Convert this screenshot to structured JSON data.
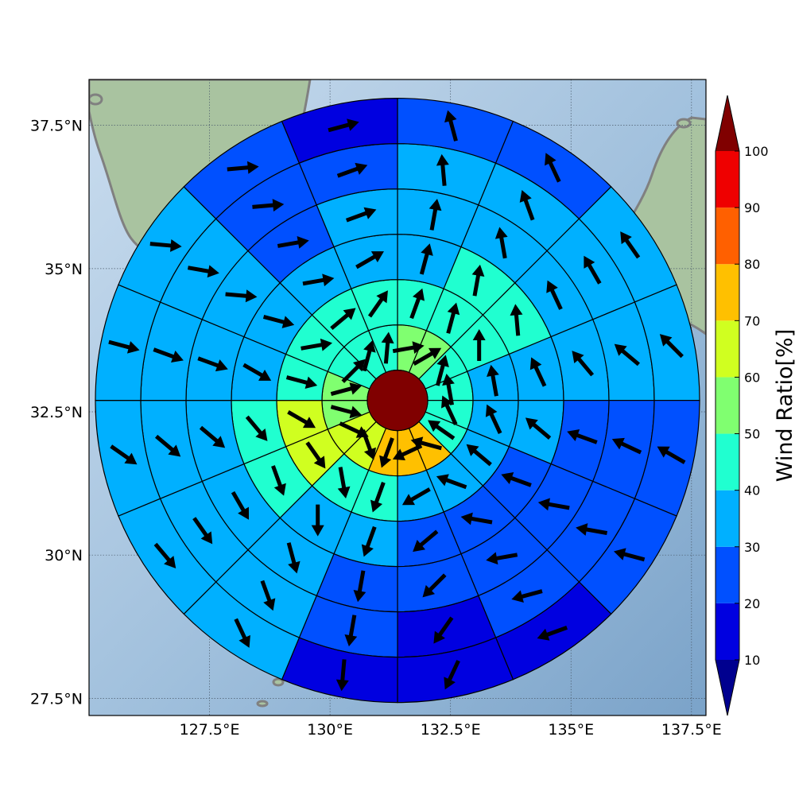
{
  "map": {
    "x_ticks": [
      "127.5°E",
      "130°E",
      "132.5°E",
      "135°E",
      "137.5°E"
    ],
    "y_ticks": [
      "37.5°N",
      "35°N",
      "32.5°N",
      "30°N",
      "27.5°N"
    ],
    "x_tick_values": [
      127.5,
      130,
      132.5,
      135,
      137.5
    ],
    "y_tick_values": [
      37.5,
      35,
      32.5,
      30,
      27.5
    ],
    "lon_range": [
      125.0,
      137.8
    ],
    "lat_range": [
      27.2,
      38.3
    ],
    "grid": true,
    "background": "shaded relief with gray coastlines",
    "coastline_color": "#808080"
  },
  "chart_data": {
    "type": "polar-sector-heatmap",
    "center": {
      "lon": 131.4,
      "lat": 32.7
    },
    "center_value": 100,
    "ring_count": 6,
    "sector_count": 16,
    "ring_values": [
      [
        50,
        50,
        40,
        40,
        40,
        40,
        70,
        70,
        70,
        60,
        60,
        50,
        50,
        40,
        40,
        40
      ],
      [
        40,
        40,
        40,
        30,
        30,
        30,
        30,
        30,
        40,
        40,
        60,
        60,
        40,
        40,
        40,
        40
      ],
      [
        30,
        40,
        40,
        30,
        30,
        20,
        20,
        20,
        30,
        30,
        40,
        40,
        30,
        30,
        30,
        30
      ],
      [
        30,
        30,
        30,
        30,
        20,
        20,
        20,
        20,
        20,
        30,
        30,
        30,
        30,
        30,
        20,
        30
      ],
      [
        30,
        30,
        30,
        30,
        20,
        20,
        20,
        10,
        20,
        30,
        30,
        30,
        30,
        30,
        20,
        20
      ],
      [
        20,
        20,
        30,
        30,
        20,
        20,
        10,
        10,
        10,
        30,
        30,
        30,
        30,
        30,
        20,
        10
      ]
    ],
    "sector_start_deg": 90,
    "sector_direction": "clockwise",
    "arrow_directions_deg": [
      [
        10,
        30,
        75,
        100,
        115,
        145,
        165,
        205,
        250,
        290,
        335,
        345,
        15,
        45,
        75,
        85
      ],
      [
        70,
        75,
        90,
        100,
        115,
        140,
        160,
        210,
        250,
        280,
        305,
        330,
        345,
        10,
        40,
        55
      ],
      [
        75,
        80,
        95,
        115,
        140,
        160,
        170,
        220,
        250,
        270,
        290,
        310,
        330,
        345,
        10,
        30
      ],
      [
        80,
        100,
        115,
        130,
        160,
        170,
        190,
        225,
        260,
        285,
        300,
        320,
        340,
        355,
        10,
        20
      ],
      [
        95,
        110,
        120,
        140,
        155,
        170,
        195,
        235,
        260,
        290,
        305,
        320,
        340,
        350,
        5,
        20
      ],
      [
        105,
        115,
        125,
        135,
        150,
        165,
        200,
        245,
        265,
        295,
        310,
        325,
        345,
        355,
        5,
        15
      ]
    ],
    "colorbar": {
      "label": "Wind Ratio[%]",
      "ticks": [
        "10",
        "20",
        "30",
        "40",
        "50",
        "60",
        "70",
        "80",
        "90",
        "100"
      ],
      "bounds": [
        0,
        10,
        20,
        30,
        40,
        50,
        60,
        70,
        80,
        90,
        100,
        110
      ],
      "colors": [
        "#00008f",
        "#0000e0",
        "#0050ff",
        "#00b0ff",
        "#20ffd0",
        "#80ff70",
        "#d0ff20",
        "#ffc000",
        "#ff6000",
        "#ef0000",
        "#800000"
      ],
      "extend": "both"
    }
  }
}
